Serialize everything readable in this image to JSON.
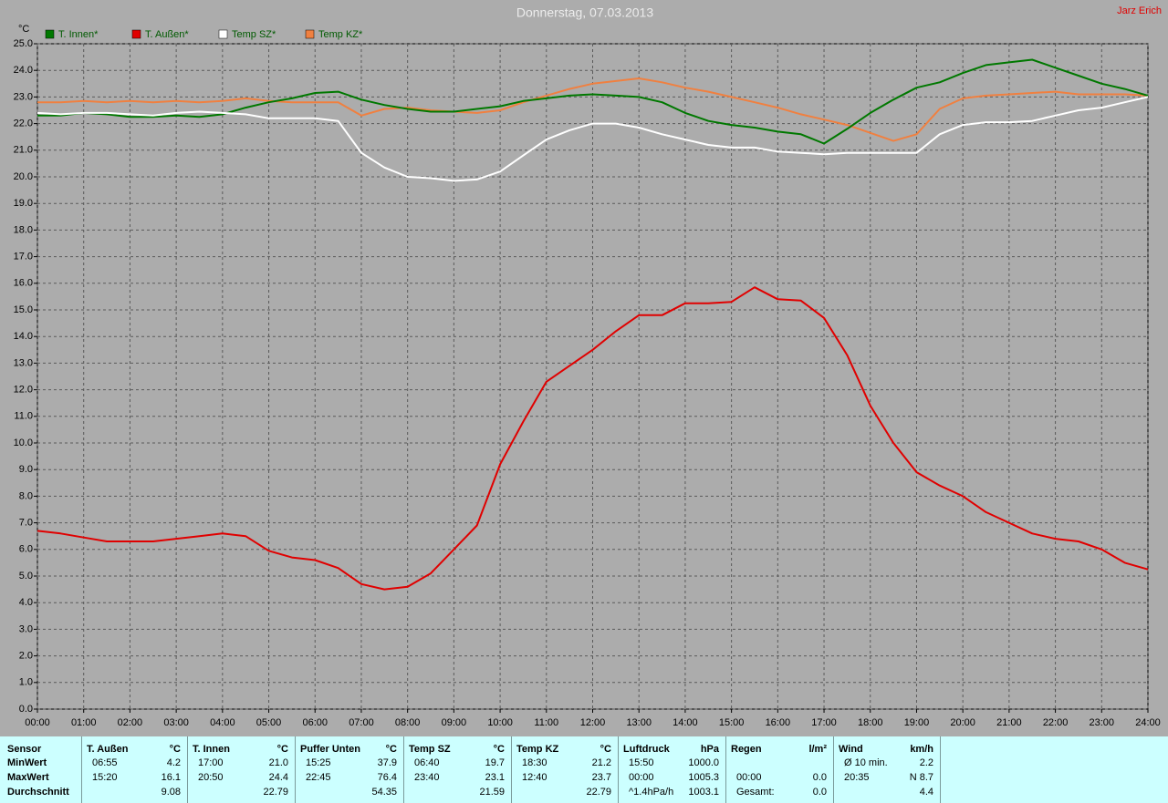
{
  "chart_data": {
    "type": "line",
    "title": "Donnerstag, 07.03.2013",
    "author": "Jarz Erich",
    "y_label": "°C",
    "xlim": [
      0,
      24
    ],
    "ylim": [
      0,
      25
    ],
    "grid": true,
    "xticks": [
      {
        "value": 0,
        "label": "00:00"
      },
      {
        "value": 1,
        "label": "01:00"
      },
      {
        "value": 2,
        "label": "02:00"
      },
      {
        "value": 3,
        "label": "03:00"
      },
      {
        "value": 4,
        "label": "04:00"
      },
      {
        "value": 5,
        "label": "05:00"
      },
      {
        "value": 6,
        "label": "06:00"
      },
      {
        "value": 7,
        "label": "07:00"
      },
      {
        "value": 8,
        "label": "08:00"
      },
      {
        "value": 9,
        "label": "09:00"
      },
      {
        "value": 10,
        "label": "10:00"
      },
      {
        "value": 11,
        "label": "11:00"
      },
      {
        "value": 12,
        "label": "12:00"
      },
      {
        "value": 13,
        "label": "13:00"
      },
      {
        "value": 14,
        "label": "14:00"
      },
      {
        "value": 15,
        "label": "15:00"
      },
      {
        "value": 16,
        "label": "16:00"
      },
      {
        "value": 17,
        "label": "17:00"
      },
      {
        "value": 18,
        "label": "18:00"
      },
      {
        "value": 19,
        "label": "19:00"
      },
      {
        "value": 20,
        "label": "20:00"
      },
      {
        "value": 21,
        "label": "21:00"
      },
      {
        "value": 22,
        "label": "22:00"
      },
      {
        "value": 23,
        "label": "23:00"
      },
      {
        "value": 24,
        "label": "24:00"
      }
    ],
    "yticks": [
      {
        "value": 0,
        "label": "0.0"
      },
      {
        "value": 1,
        "label": "1.0"
      },
      {
        "value": 2,
        "label": "2.0"
      },
      {
        "value": 3,
        "label": "3.0"
      },
      {
        "value": 4,
        "label": "4.0"
      },
      {
        "value": 5,
        "label": "5.0"
      },
      {
        "value": 6,
        "label": "6.0"
      },
      {
        "value": 7,
        "label": "7.0"
      },
      {
        "value": 8,
        "label": "8.0"
      },
      {
        "value": 9,
        "label": "9.0"
      },
      {
        "value": 10,
        "label": "10.0"
      },
      {
        "value": 11,
        "label": "11.0"
      },
      {
        "value": 12,
        "label": "12.0"
      },
      {
        "value": 13,
        "label": "13.0"
      },
      {
        "value": 14,
        "label": "14.0"
      },
      {
        "value": 15,
        "label": "15.0"
      },
      {
        "value": 16,
        "label": "16.0"
      },
      {
        "value": 17,
        "label": "17.0"
      },
      {
        "value": 18,
        "label": "18.0"
      },
      {
        "value": 19,
        "label": "19.0"
      },
      {
        "value": 20,
        "label": "20.0"
      },
      {
        "value": 21,
        "label": "21.0"
      },
      {
        "value": 22,
        "label": "22.0"
      },
      {
        "value": 23,
        "label": "23.0"
      },
      {
        "value": 24,
        "label": "24.0"
      },
      {
        "value": 25,
        "label": "25.0"
      }
    ],
    "x": [
      0,
      0.5,
      1,
      1.5,
      2,
      2.5,
      3,
      3.5,
      4,
      4.5,
      5,
      5.5,
      6,
      6.5,
      7,
      7.5,
      8,
      8.5,
      9,
      9.5,
      10,
      10.5,
      11,
      11.5,
      12,
      12.5,
      13,
      13.5,
      14,
      14.5,
      15,
      15.5,
      16,
      16.5,
      17,
      17.5,
      18,
      18.5,
      19,
      19.5,
      20,
      20.5,
      21,
      21.5,
      22,
      22.5,
      23,
      23.5,
      24
    ],
    "series": [
      {
        "name": "T. Innen*",
        "color": "#007800",
        "values": [
          22.3,
          22.3,
          22.4,
          22.35,
          22.25,
          22.25,
          22.3,
          22.25,
          22.35,
          22.6,
          22.8,
          22.95,
          23.15,
          23.2,
          22.9,
          22.7,
          22.55,
          22.45,
          22.45,
          22.55,
          22.65,
          22.85,
          22.95,
          23.05,
          23.1,
          23.05,
          23.0,
          22.8,
          22.4,
          22.1,
          21.95,
          21.85,
          21.7,
          21.6,
          21.25,
          21.8,
          22.4,
          22.9,
          23.35,
          23.55,
          23.9,
          24.2,
          24.3,
          24.4,
          24.1,
          23.8,
          23.5,
          23.3,
          23.05
        ]
      },
      {
        "name": "T. Außen*",
        "color": "#e00000",
        "values": [
          6.7,
          6.6,
          6.45,
          6.3,
          6.3,
          6.3,
          6.4,
          6.5,
          6.6,
          6.5,
          5.95,
          5.7,
          5.6,
          5.3,
          4.7,
          4.5,
          4.6,
          5.1,
          6.0,
          6.9,
          9.2,
          10.8,
          12.3,
          12.9,
          13.5,
          14.2,
          14.8,
          14.8,
          15.25,
          15.25,
          15.3,
          15.85,
          15.4,
          15.35,
          14.7,
          13.3,
          11.4,
          10.0,
          8.9,
          8.4,
          8.0,
          7.4,
          7.0,
          6.6,
          6.4,
          6.3,
          6.0,
          5.5,
          5.25
        ]
      },
      {
        "name": "Temp SZ*",
        "color": "#ffffff",
        "values": [
          22.4,
          22.35,
          22.4,
          22.4,
          22.35,
          22.3,
          22.4,
          22.45,
          22.4,
          22.35,
          22.2,
          22.2,
          22.2,
          22.1,
          20.9,
          20.35,
          20.0,
          19.95,
          19.85,
          19.9,
          20.2,
          20.8,
          21.4,
          21.75,
          22.0,
          22.0,
          21.85,
          21.6,
          21.4,
          21.2,
          21.1,
          21.1,
          20.95,
          20.9,
          20.85,
          20.9,
          20.9,
          20.9,
          20.9,
          21.6,
          21.95,
          22.05,
          22.05,
          22.1,
          22.3,
          22.5,
          22.6,
          22.8,
          23.0
        ]
      },
      {
        "name": "Temp KZ*",
        "color": "#f08040",
        "values": [
          22.8,
          22.8,
          22.85,
          22.8,
          22.85,
          22.8,
          22.85,
          22.8,
          22.85,
          22.95,
          22.85,
          22.8,
          22.8,
          22.8,
          22.3,
          22.55,
          22.6,
          22.5,
          22.45,
          22.4,
          22.5,
          22.8,
          23.05,
          23.3,
          23.5,
          23.6,
          23.7,
          23.55,
          23.35,
          23.2,
          23.0,
          22.8,
          22.6,
          22.35,
          22.15,
          21.95,
          21.65,
          21.35,
          21.6,
          22.55,
          22.95,
          23.05,
          23.1,
          23.15,
          23.2,
          23.1,
          23.1,
          23.1,
          23.05
        ]
      }
    ]
  },
  "stats_table": {
    "row_labels": [
      "Sensor",
      "MinWert",
      "MaxWert",
      "Durchschnitt"
    ],
    "columns": [
      {
        "header": "T. Außen",
        "unit": "°C",
        "cells": [
          [
            "06:55",
            "4.2"
          ],
          [
            "15:20",
            "16.1"
          ],
          [
            null,
            "9.08"
          ]
        ]
      },
      {
        "header": "T. Innen",
        "unit": "°C",
        "cells": [
          [
            "17:00",
            "21.0"
          ],
          [
            "20:50",
            "24.4"
          ],
          [
            null,
            "22.79"
          ]
        ]
      },
      {
        "header": "Puffer Unten",
        "unit": "°C",
        "cells": [
          [
            "15:25",
            "37.9"
          ],
          [
            "22:45",
            "76.4"
          ],
          [
            null,
            "54.35"
          ]
        ]
      },
      {
        "header": "Temp SZ",
        "unit": "°C",
        "cells": [
          [
            "06:40",
            "19.7"
          ],
          [
            "23:40",
            "23.1"
          ],
          [
            null,
            "21.59"
          ]
        ]
      },
      {
        "header": "Temp KZ",
        "unit": "°C",
        "cells": [
          [
            "18:30",
            "21.2"
          ],
          [
            "12:40",
            "23.7"
          ],
          [
            null,
            "22.79"
          ]
        ]
      },
      {
        "header": "Luftdruck",
        "unit": "hPa",
        "cells": [
          [
            "15:50",
            "1000.0"
          ],
          [
            "00:00",
            "1005.3"
          ],
          [
            "^1.4hPa/h",
            "1003.1"
          ]
        ]
      },
      {
        "header": "Regen",
        "unit": "l/m²",
        "cells": [
          [
            null,
            null
          ],
          [
            "00:00",
            "0.0"
          ],
          [
            "Gesamt:",
            "0.0"
          ]
        ]
      },
      {
        "header": "Wind",
        "unit": "km/h",
        "cells": [
          [
            "Ø 10 min.",
            "2.2"
          ],
          [
            "20:35",
            "N 8.7"
          ],
          [
            null,
            "4.4"
          ]
        ]
      }
    ]
  }
}
